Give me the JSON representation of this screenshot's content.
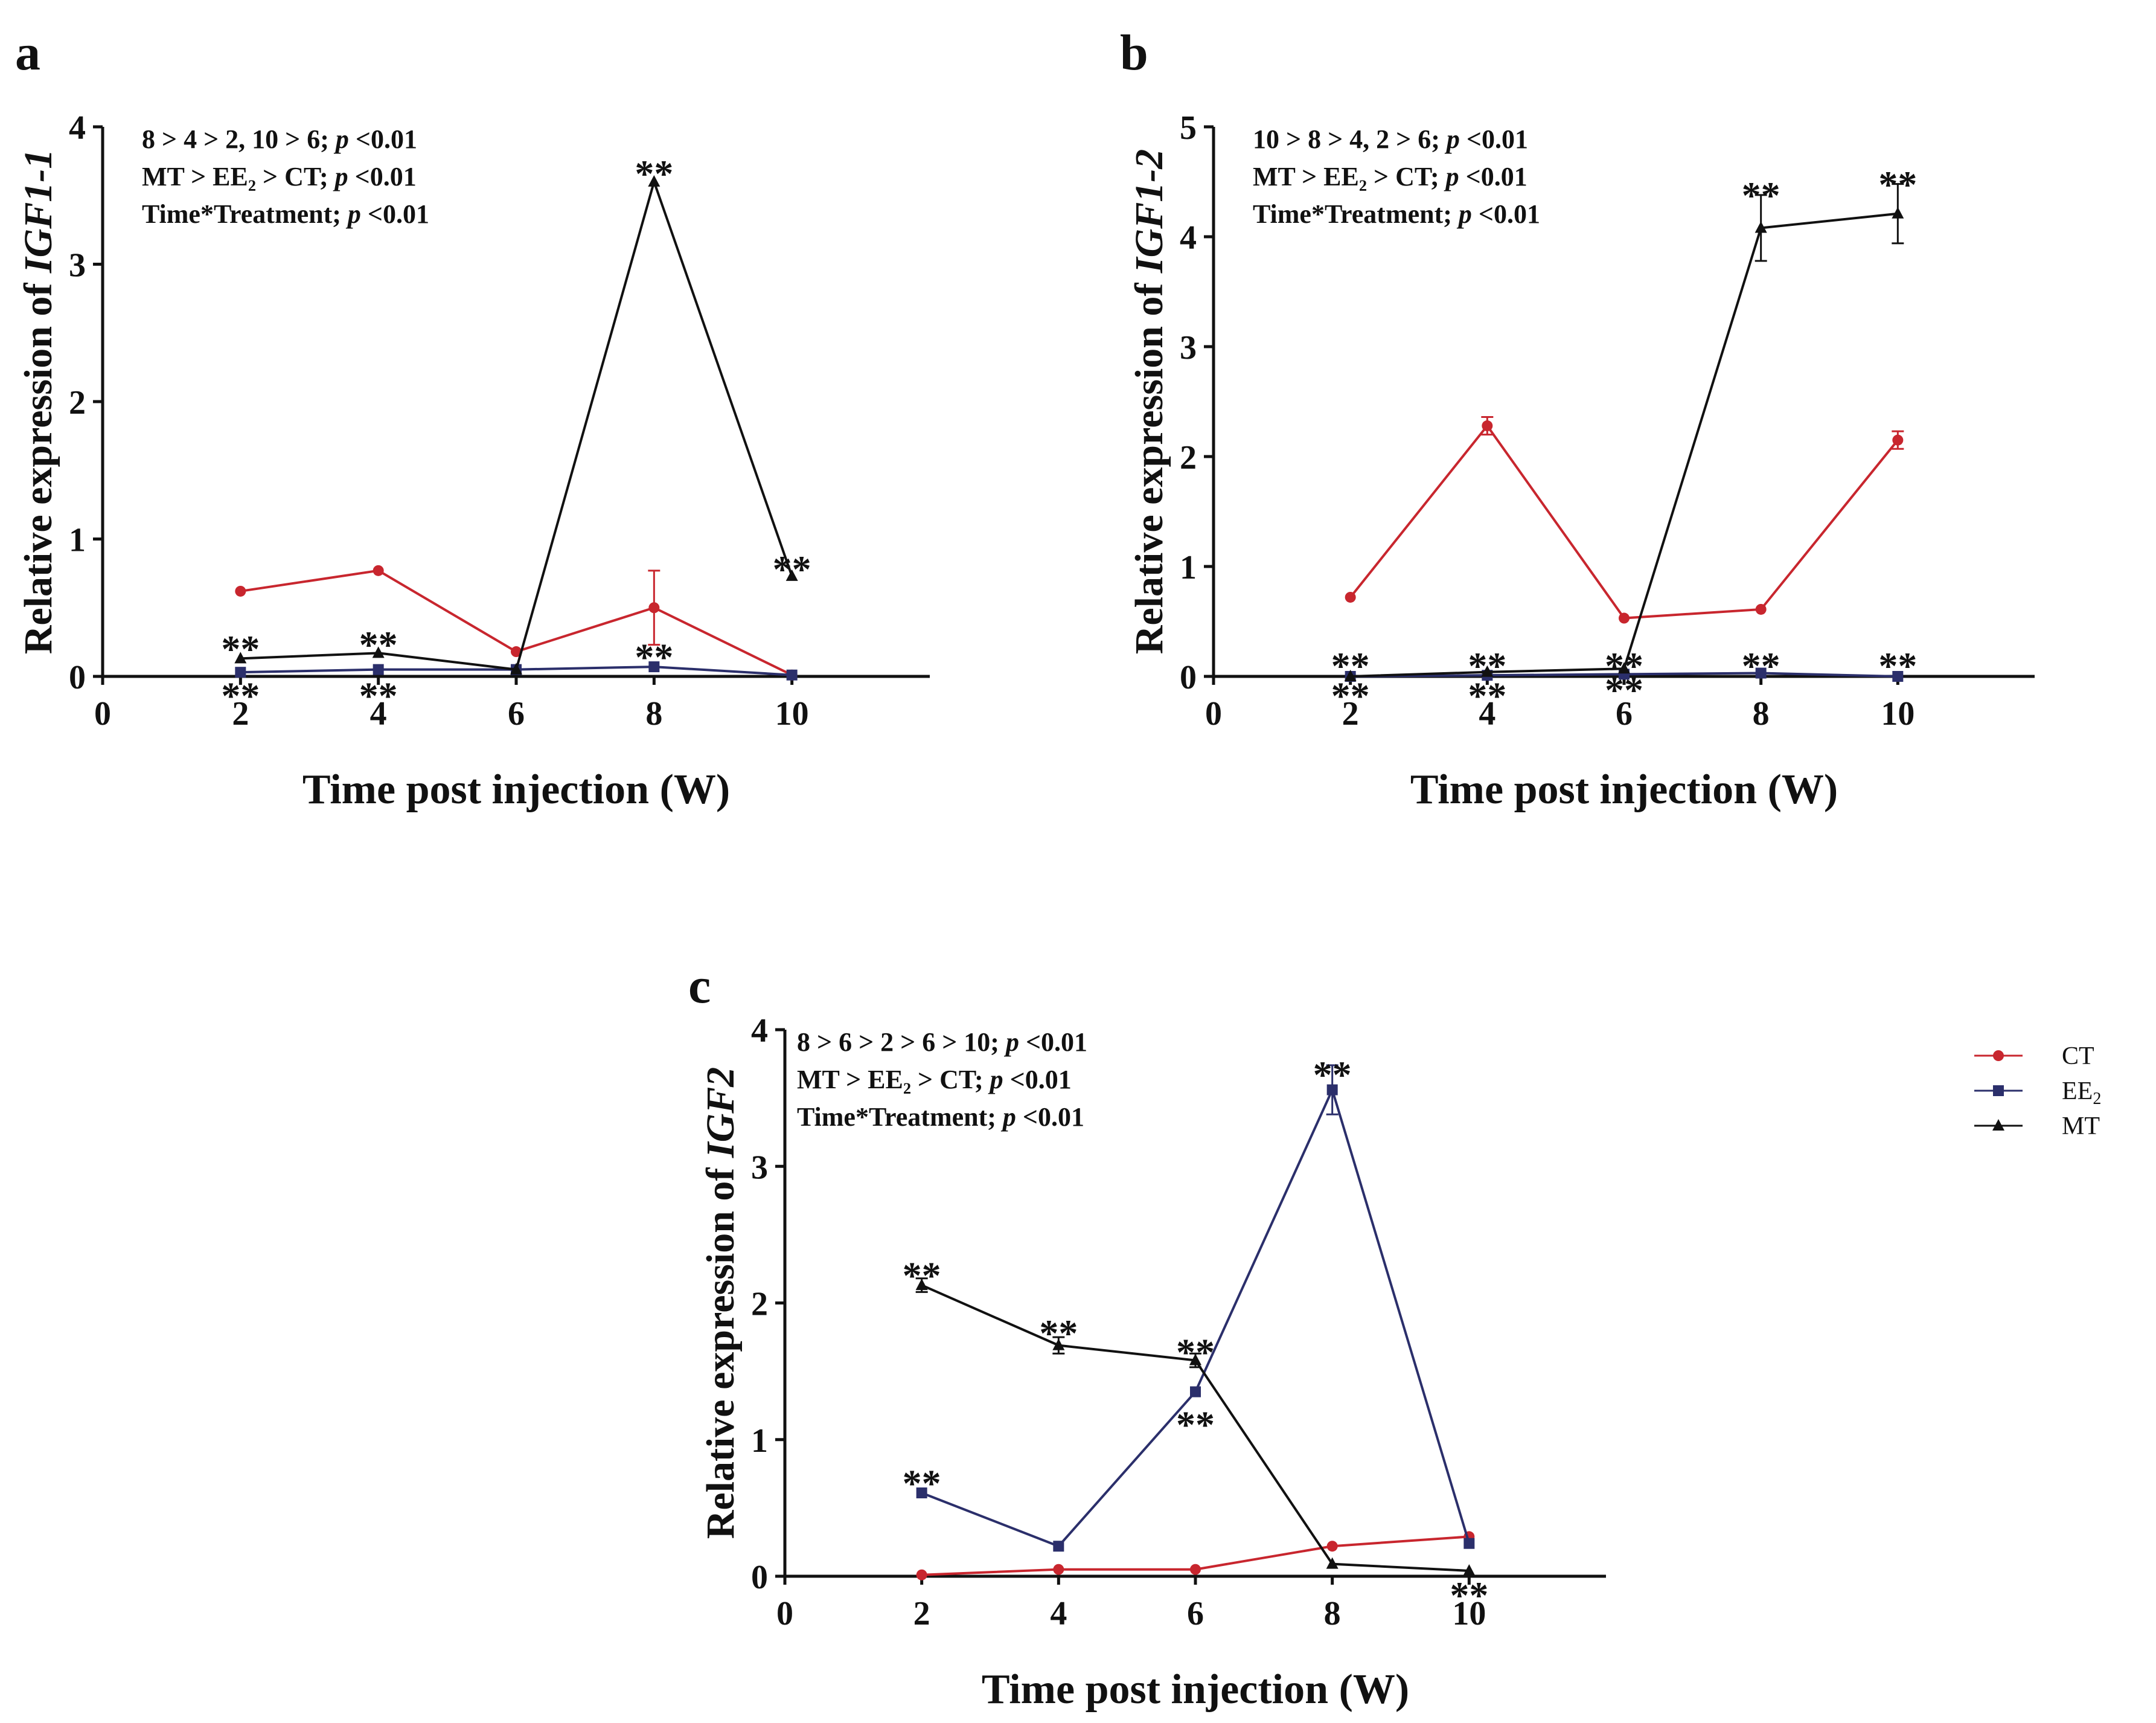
{
  "chart_data": [
    {
      "type": "line",
      "panel_label": "a",
      "ylabel_prefix": "Relative expression of ",
      "ylabel_gene": "IGF1-1",
      "xlabel": "Time post injection (W)",
      "xlim": [
        0,
        12
      ],
      "xticks": [
        "0",
        "2",
        "4",
        "6",
        "8",
        "10"
      ],
      "ylim": [
        0,
        4
      ],
      "yticks": [
        "0",
        "1",
        "2",
        "3",
        "4"
      ],
      "stats": [
        {
          "text": "8 > 4 > 2, 10 > 6; ",
          "italic": "p",
          "tail": " <0.01"
        },
        {
          "text": "MT > EE₂ > CT; ",
          "italic": "p",
          "tail": " <0.01"
        },
        {
          "text": "Time*Treatment; ",
          "italic": "p",
          "tail": " <0.01"
        }
      ],
      "x": [
        2,
        4,
        6,
        8,
        10
      ],
      "series": [
        {
          "name": "CT",
          "values": [
            0.62,
            0.77,
            0.18,
            0.5,
            0.01
          ],
          "errors": [
            0.01,
            0.01,
            0.01,
            0.27,
            0.005
          ]
        },
        {
          "name": "EE2",
          "values": [
            0.03,
            0.05,
            0.05,
            0.07,
            0.01
          ],
          "errors": [
            0,
            0,
            0,
            0,
            0
          ]
        },
        {
          "name": "MT",
          "values": [
            0.13,
            0.17,
            0.05,
            3.6,
            0.73
          ],
          "errors": [
            0,
            0,
            0,
            0,
            0
          ]
        }
      ],
      "annotations": [
        {
          "text": "**",
          "x": 2,
          "y": 0.22
        },
        {
          "text": "**",
          "x": 2,
          "y": -0.12
        },
        {
          "text": "**",
          "x": 4,
          "y": 0.25
        },
        {
          "text": "**",
          "x": 4,
          "y": -0.12
        },
        {
          "text": "**",
          "x": 8,
          "y": 3.68
        },
        {
          "text": "**",
          "x": 8,
          "y": 0.16
        },
        {
          "text": "**",
          "x": 10,
          "y": 0.8
        }
      ]
    },
    {
      "type": "line",
      "panel_label": "b",
      "ylabel_prefix": "Relative expression of ",
      "ylabel_gene": "IGF1-2",
      "xlabel": "Time post injection (W)",
      "xlim": [
        0,
        12
      ],
      "xticks": [
        "0",
        "2",
        "4",
        "6",
        "8",
        "10"
      ],
      "ylim": [
        0,
        5
      ],
      "yticks": [
        "0",
        "1",
        "2",
        "3",
        "4",
        "5"
      ],
      "stats": [
        {
          "text": "10 > 8 > 4, 2 > 6; ",
          "italic": "p",
          "tail": " <0.01"
        },
        {
          "text": "MT > EE₂ > CT; ",
          "italic": "p",
          "tail": " <0.01"
        },
        {
          "text": "Time*Treatment; ",
          "italic": "p",
          "tail": " <0.01"
        }
      ],
      "x": [
        2,
        4,
        6,
        8,
        10
      ],
      "series": [
        {
          "name": "CT",
          "values": [
            0.72,
            2.28,
            0.53,
            0.61,
            2.15
          ],
          "errors": [
            0.01,
            0.08,
            0.01,
            0.01,
            0.08
          ]
        },
        {
          "name": "EE2",
          "values": [
            0.0,
            0.01,
            0.02,
            0.03,
            0.0
          ],
          "errors": [
            0,
            0,
            0,
            0,
            0
          ]
        },
        {
          "name": "MT",
          "values": [
            0.0,
            0.04,
            0.07,
            4.08,
            4.21
          ],
          "errors": [
            0,
            0,
            0,
            0.3,
            0.27
          ]
        }
      ],
      "annotations": [
        {
          "text": "**",
          "x": 2,
          "y": 0.12
        },
        {
          "text": "**",
          "x": 2,
          "y": -0.15
        },
        {
          "text": "**",
          "x": 4,
          "y": 0.12
        },
        {
          "text": "**",
          "x": 4,
          "y": -0.15
        },
        {
          "text": "**",
          "x": 6,
          "y": 0.12
        },
        {
          "text": "**",
          "x": 6,
          "y": -0.1
        },
        {
          "text": "**",
          "x": 8,
          "y": 0.12
        },
        {
          "text": "**",
          "x": 8,
          "y": 4.4
        },
        {
          "text": "**",
          "x": 10,
          "y": 0.12
        },
        {
          "text": "**",
          "x": 10,
          "y": 4.5
        }
      ]
    },
    {
      "type": "line",
      "panel_label": "c",
      "ylabel_prefix": "Relative expression of ",
      "ylabel_gene": "IGF2",
      "xlabel": "Time post injection (W)",
      "xlim": [
        0,
        12
      ],
      "xticks": [
        "0",
        "2",
        "4",
        "6",
        "8",
        "10"
      ],
      "ylim": [
        0,
        4
      ],
      "yticks": [
        "0",
        "1",
        "2",
        "3",
        "4"
      ],
      "stats": [
        {
          "text": "8 > 6 > 2 > 6 > 10; ",
          "italic": "p",
          "tail": " <0.01"
        },
        {
          "text": "MT > EE₂ > CT; ",
          "italic": "p",
          "tail": " <0.01"
        },
        {
          "text": "Time*Treatment; ",
          "italic": "p",
          "tail": " <0.01"
        }
      ],
      "x": [
        2,
        4,
        6,
        8,
        10
      ],
      "series": [
        {
          "name": "CT",
          "values": [
            0.01,
            0.05,
            0.05,
            0.22,
            0.29
          ],
          "errors": [
            0,
            0,
            0,
            0,
            0
          ]
        },
        {
          "name": "EE2",
          "values": [
            0.61,
            0.22,
            1.35,
            3.56,
            0.24
          ],
          "errors": [
            0,
            0,
            0,
            0.18,
            0
          ]
        },
        {
          "name": "MT",
          "values": [
            2.13,
            1.69,
            1.58,
            0.09,
            0.04
          ],
          "errors": [
            0.05,
            0.06,
            0.05,
            0,
            0
          ]
        }
      ],
      "annotations": [
        {
          "text": "**",
          "x": 2,
          "y": 2.22
        },
        {
          "text": "**",
          "x": 2,
          "y": 0.7
        },
        {
          "text": "**",
          "x": 4,
          "y": 1.8
        },
        {
          "text": "**",
          "x": 6,
          "y": 1.66
        },
        {
          "text": "**",
          "x": 6,
          "y": 1.13
        },
        {
          "text": "**",
          "x": 8,
          "y": 3.69
        },
        {
          "text": "**",
          "x": 10,
          "y": -0.12
        }
      ]
    }
  ],
  "legend": {
    "placement": "right of panel c",
    "entries": [
      {
        "name": "CT",
        "label": "CT",
        "sub": ""
      },
      {
        "name": "EE2",
        "label": "EE",
        "sub": "2"
      },
      {
        "name": "MT",
        "label": "MT",
        "sub": ""
      }
    ]
  },
  "colors": {
    "CT": "#c8262e",
    "EE2": "#2b2f6b",
    "MT": "#111111",
    "axis": "#111111"
  },
  "markers": {
    "CT": "circle",
    "EE2": "square",
    "MT": "triangle"
  }
}
